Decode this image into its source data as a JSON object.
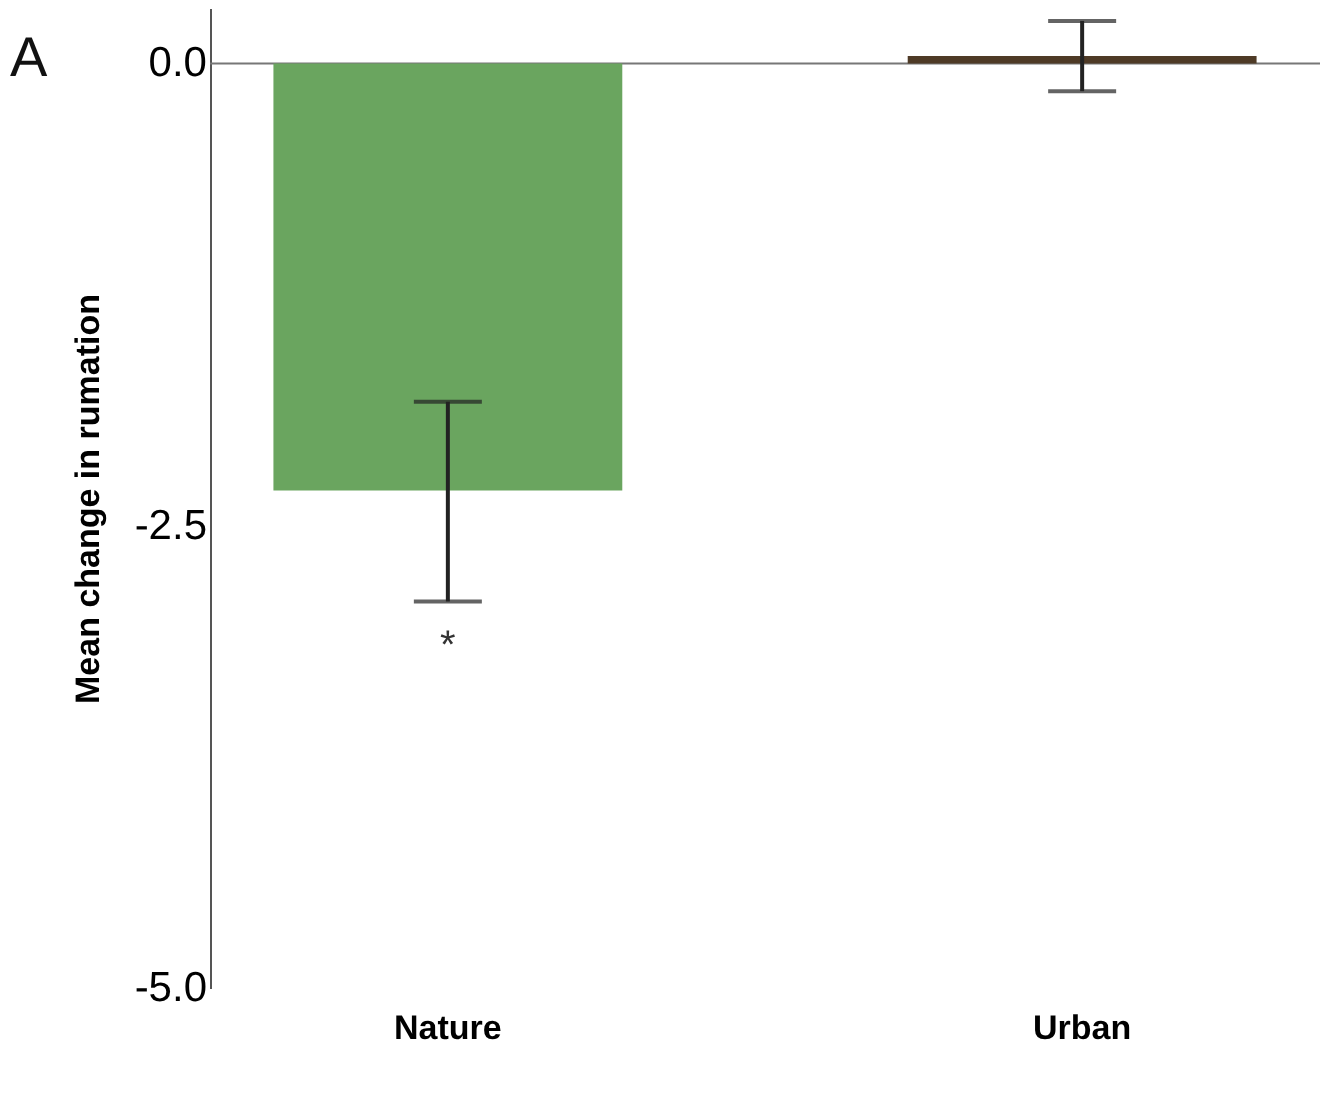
{
  "chart_data": {
    "type": "bar",
    "categories": [
      "Nature",
      "Urban"
    ],
    "values": [
      -2.31,
      0.04
    ],
    "colors": [
      "#6aa55f",
      "#4e3a26"
    ],
    "errors": [
      [
        -2.91,
        -1.83
      ],
      [
        -0.15,
        0.23
      ]
    ],
    "ylabel": "Mean change in rumation",
    "ylim": [
      -5.0,
      0.3
    ],
    "yticks": [
      {
        "value": 0,
        "label": "0.0"
      },
      {
        "value": -2.5,
        "label": "-2.5"
      },
      {
        "value": -5,
        "label": "-5.0"
      }
    ],
    "ref_lines": [
      {
        "axis": "y",
        "value": 0,
        "color": "#777777"
      }
    ],
    "annotations": [
      "A",
      "*"
    ],
    "grid": false
  }
}
